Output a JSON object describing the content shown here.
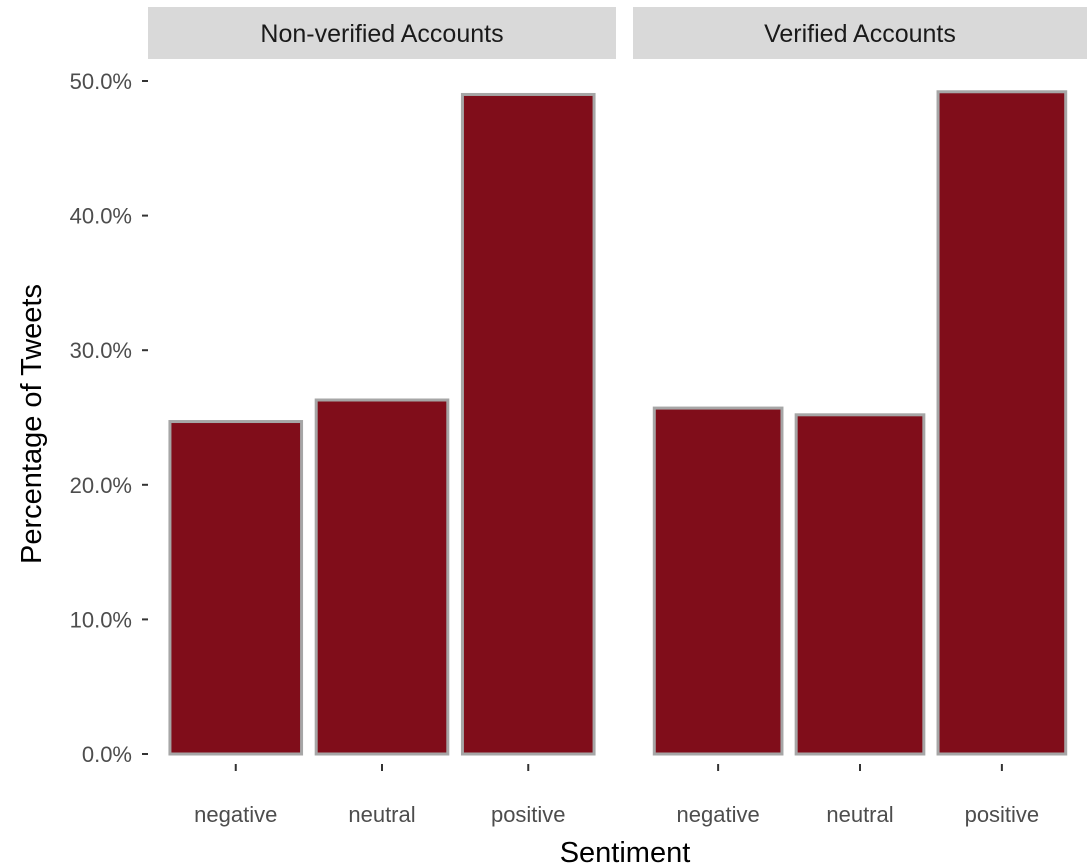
{
  "chart_data": {
    "type": "bar",
    "title": "",
    "xlabel": "Sentiment",
    "ylabel": "Percentage of Tweets",
    "ylim": [
      0,
      50
    ],
    "y_ticks": [
      "0.0%",
      "10.0%",
      "20.0%",
      "30.0%",
      "40.0%",
      "50.0%"
    ],
    "y_tick_values": [
      0,
      10,
      20,
      30,
      40,
      50
    ],
    "categories": [
      "negative",
      "neutral",
      "positive"
    ],
    "grid": false,
    "bar_color": "#800D1A",
    "bar_outline_color": "#A6A6A6",
    "strip_color": "#D9D9D9",
    "facets": [
      {
        "label": "Non-verified Accounts",
        "values": [
          24.7,
          26.3,
          49.0
        ]
      },
      {
        "label": "Verified Accounts",
        "values": [
          25.7,
          25.2,
          49.2
        ]
      }
    ]
  }
}
